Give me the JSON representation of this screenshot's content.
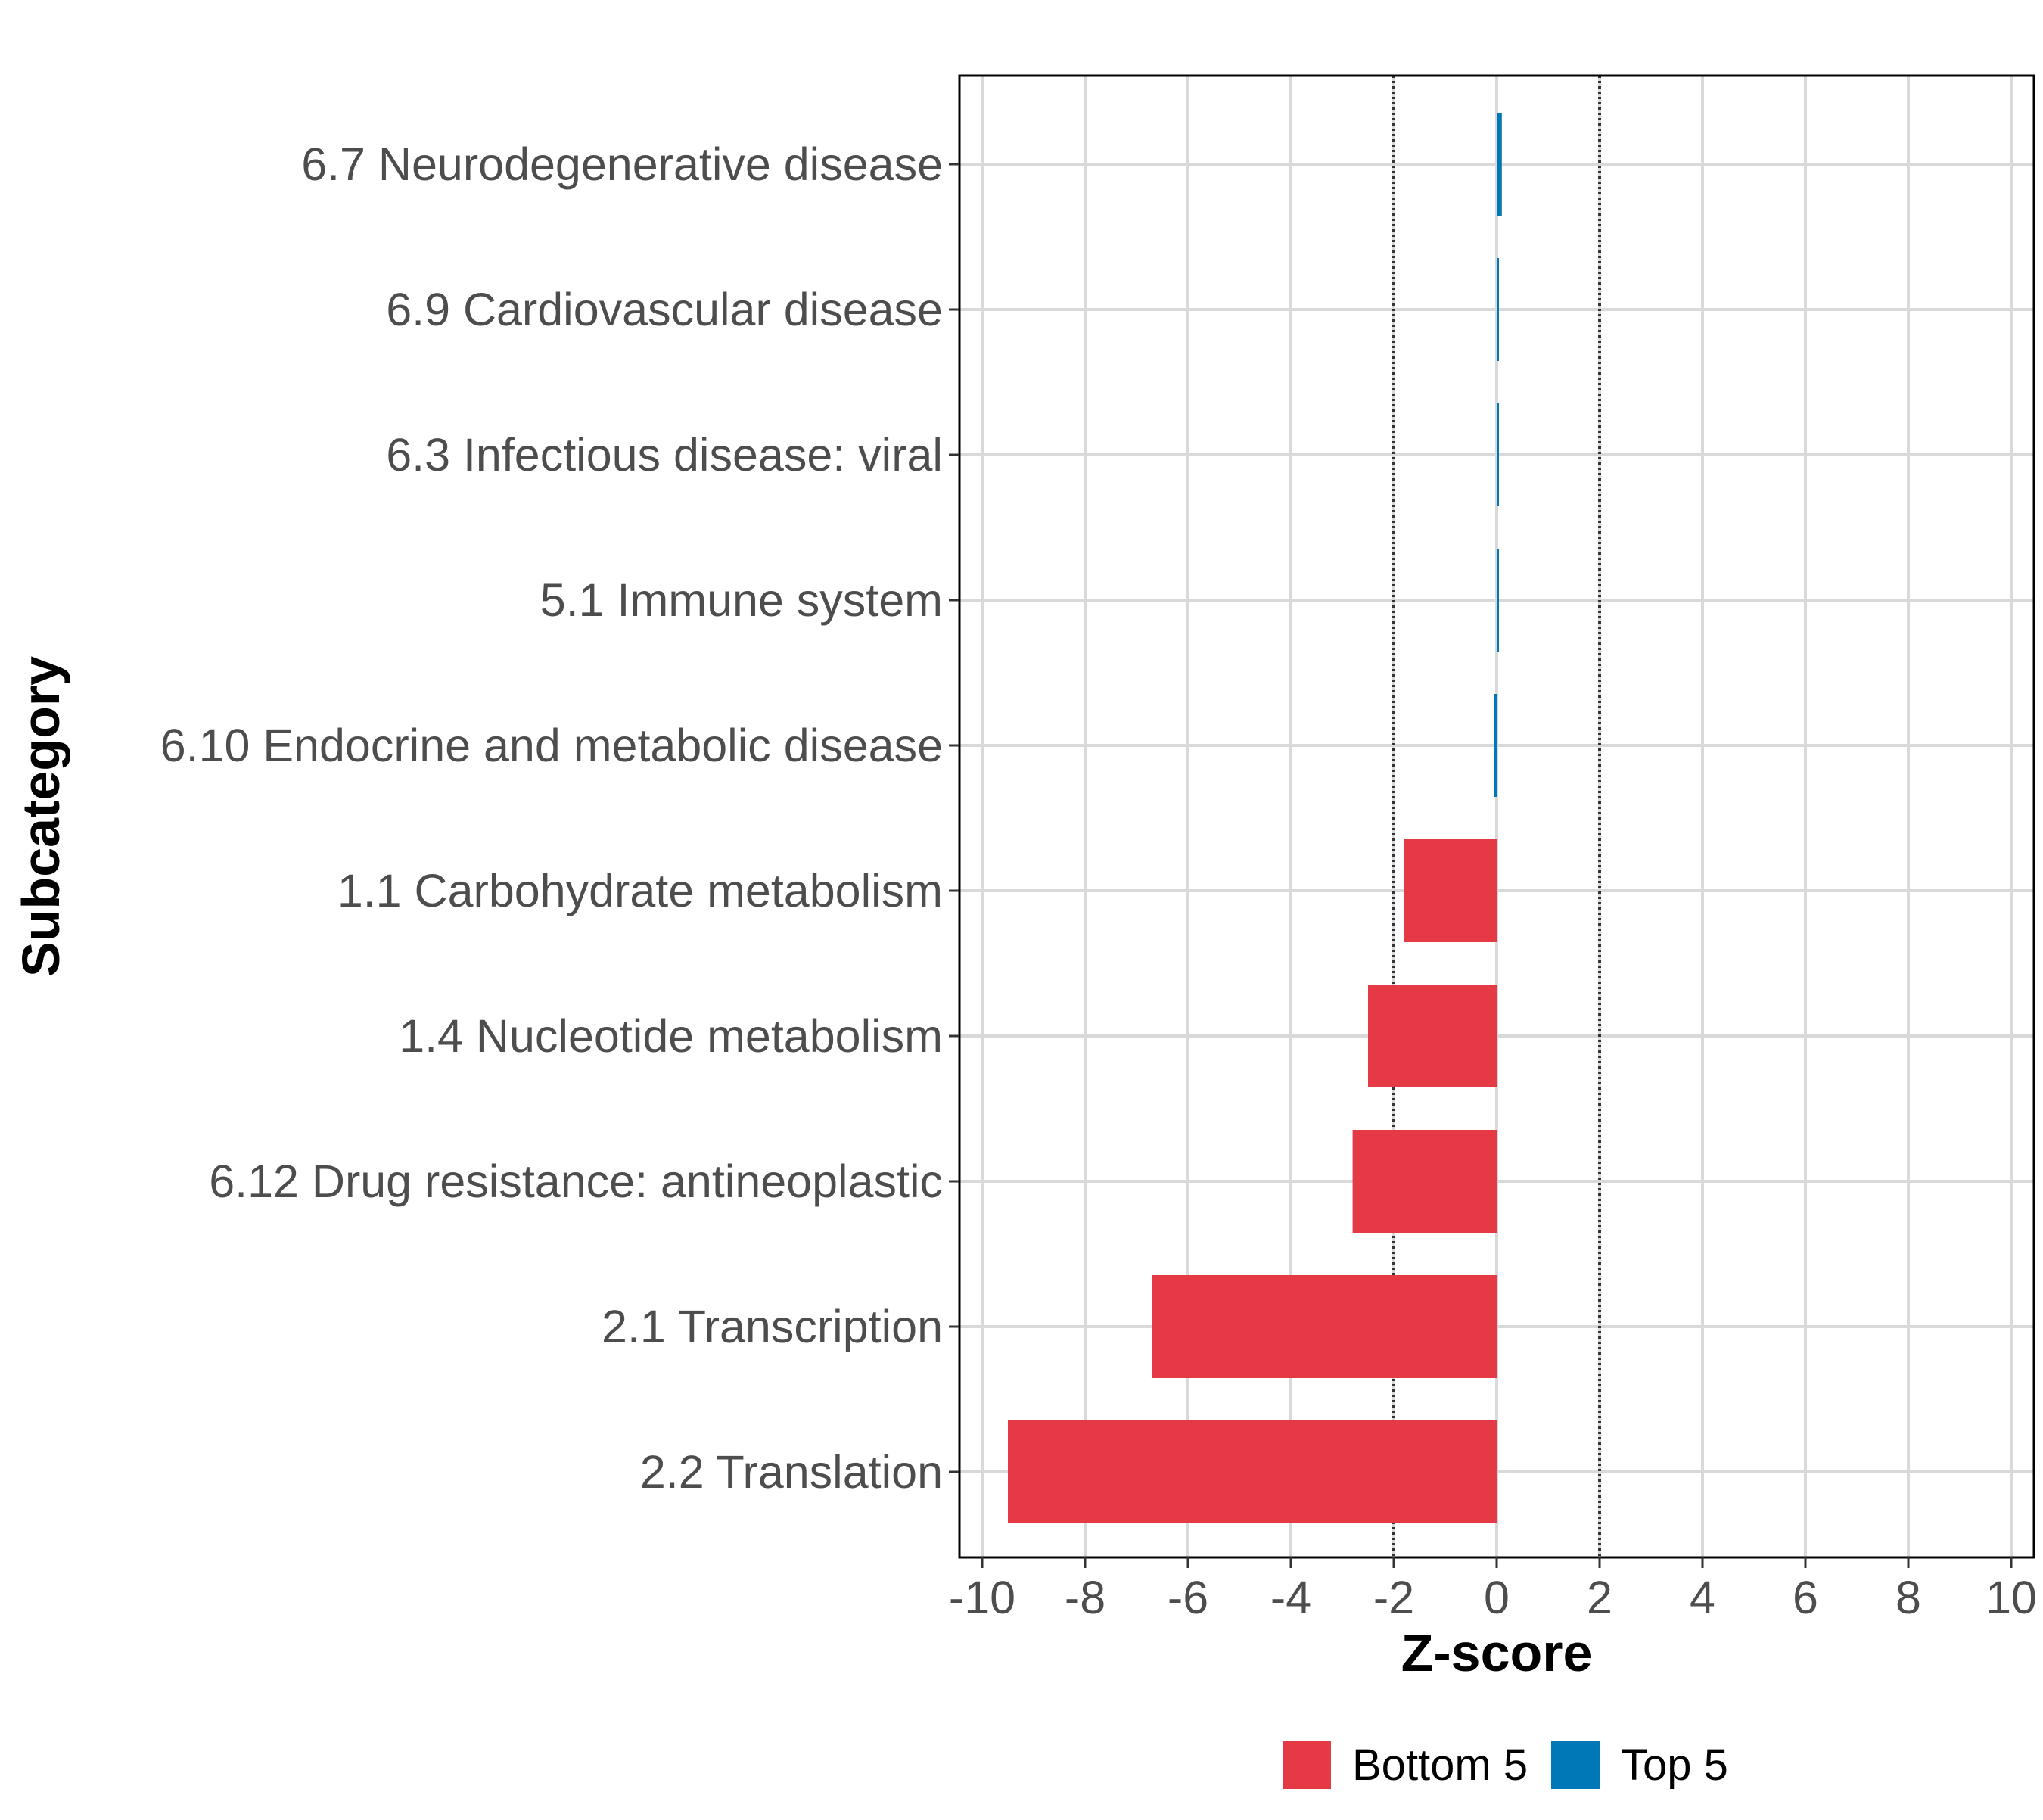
{
  "chart_data": {
    "type": "bar",
    "orientation": "horizontal",
    "title": "",
    "xlabel": "Z-score",
    "ylabel": "Subcategory",
    "xlim": [
      -10,
      10
    ],
    "xticks": [
      -10,
      -8,
      -6,
      -4,
      -2,
      0,
      2,
      4,
      6,
      8,
      10
    ],
    "xtick_labels": [
      "-10",
      "-8",
      "-6",
      "-4",
      "-2",
      "0",
      "2",
      "4",
      "6",
      "8",
      "10"
    ],
    "reference_lines": [
      -2,
      2
    ],
    "grid": true,
    "legend_position": "bottom",
    "categories": [
      "6.7 Neurodegenerative disease",
      "6.9 Cardiovascular disease",
      "6.3 Infectious disease: viral",
      "5.1 Immune system",
      "6.10 Endocrine and metabolic disease",
      "1.1 Carbohydrate metabolism",
      "1.4 Nucleotide metabolism",
      "6.12 Drug resistance: antineoplastic",
      "2.1 Transcription",
      "2.2 Translation"
    ],
    "values": [
      0.1,
      0.03,
      0.03,
      0.03,
      -0.05,
      -1.8,
      -2.5,
      -2.8,
      -6.7,
      -9.5
    ],
    "groups": [
      "Top 5",
      "Top 5",
      "Top 5",
      "Top 5",
      "Top 5",
      "Bottom 5",
      "Bottom 5",
      "Bottom 5",
      "Bottom 5",
      "Bottom 5"
    ],
    "legend": [
      {
        "name": "Bottom 5",
        "color": "#e63946"
      },
      {
        "name": "Top 5",
        "color": "#0077b6"
      }
    ]
  },
  "colors": {
    "grid": "#d9d9d9",
    "panel_border": "#000000",
    "reference_line": "#333333"
  }
}
